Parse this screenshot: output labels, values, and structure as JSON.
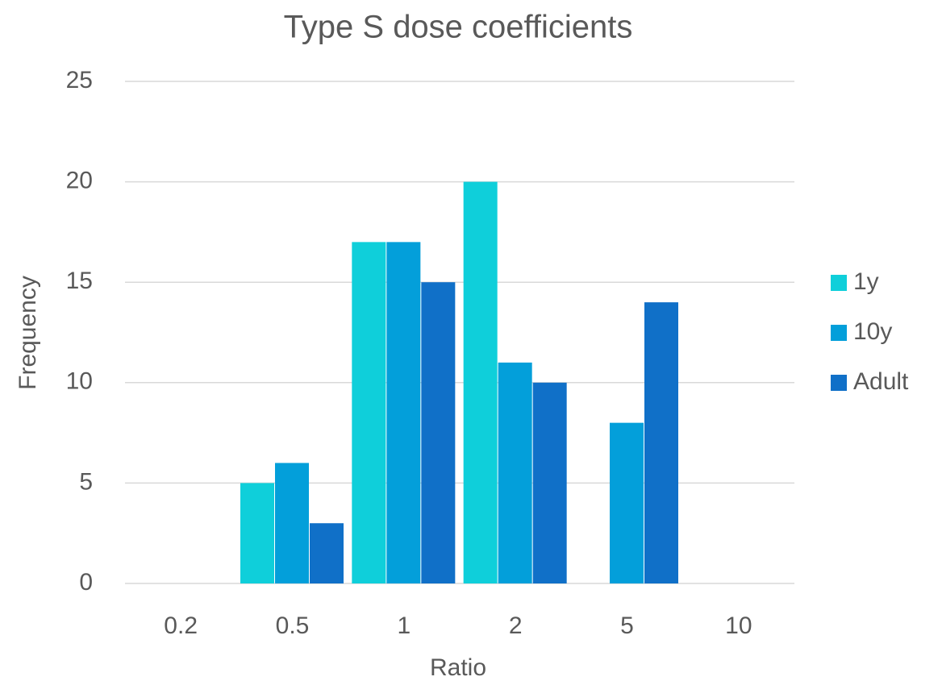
{
  "chart_data": {
    "type": "bar",
    "title": "Type S dose coefficients",
    "x_label": "Ratio",
    "y_label": "Frequency",
    "categories": [
      "0.2",
      "0.5",
      "1",
      "2",
      "5",
      "10"
    ],
    "series": [
      {
        "name": "1y",
        "color": "#0fcfda",
        "values": [
          0,
          5,
          17,
          20,
          0,
          0
        ]
      },
      {
        "name": "10y",
        "color": "#039fda",
        "values": [
          0,
          6,
          17,
          11,
          8,
          0
        ]
      },
      {
        "name": "Adult",
        "color": "#1070c8",
        "values": [
          0,
          3,
          15,
          10,
          14,
          0
        ]
      }
    ],
    "ylim": [
      0,
      25
    ],
    "yticks": [
      0,
      5,
      10,
      15,
      20,
      25
    ],
    "grid": true,
    "legend": "right"
  }
}
